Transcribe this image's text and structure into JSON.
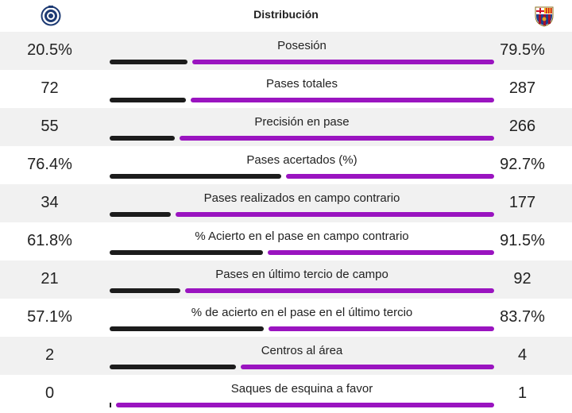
{
  "header": {
    "title": "Distribución"
  },
  "colors": {
    "home_bar": "#1c1c1c",
    "away_bar": "#9a14c0"
  },
  "stats": [
    {
      "label": "Posesión",
      "home": "20.5%",
      "away": "79.5%",
      "home_share": 0.205
    },
    {
      "label": "Pases totales",
      "home": "72",
      "away": "287",
      "home_share": 0.2
    },
    {
      "label": "Precisión en pase",
      "home": "55",
      "away": "266",
      "home_share": 0.171
    },
    {
      "label": "Pases acertados (%)",
      "home": "76.4%",
      "away": "92.7%",
      "home_share": 0.452
    },
    {
      "label": "Pases realizados en campo contrario",
      "home": "34",
      "away": "177",
      "home_share": 0.161
    },
    {
      "label": "% Acierto en el pase en campo contrario",
      "home": "61.8%",
      "away": "91.5%",
      "home_share": 0.403
    },
    {
      "label": "Pases en último tercio de campo",
      "home": "21",
      "away": "92",
      "home_share": 0.186
    },
    {
      "label": "% de acierto en el pase en el último tercio",
      "home": "57.1%",
      "away": "83.7%",
      "home_share": 0.406
    },
    {
      "label": "Centros al área",
      "home": "2",
      "away": "4",
      "home_share": 0.333
    },
    {
      "label": "Saques de esquina a favor",
      "home": "0",
      "away": "1",
      "home_share": 0.0
    }
  ]
}
